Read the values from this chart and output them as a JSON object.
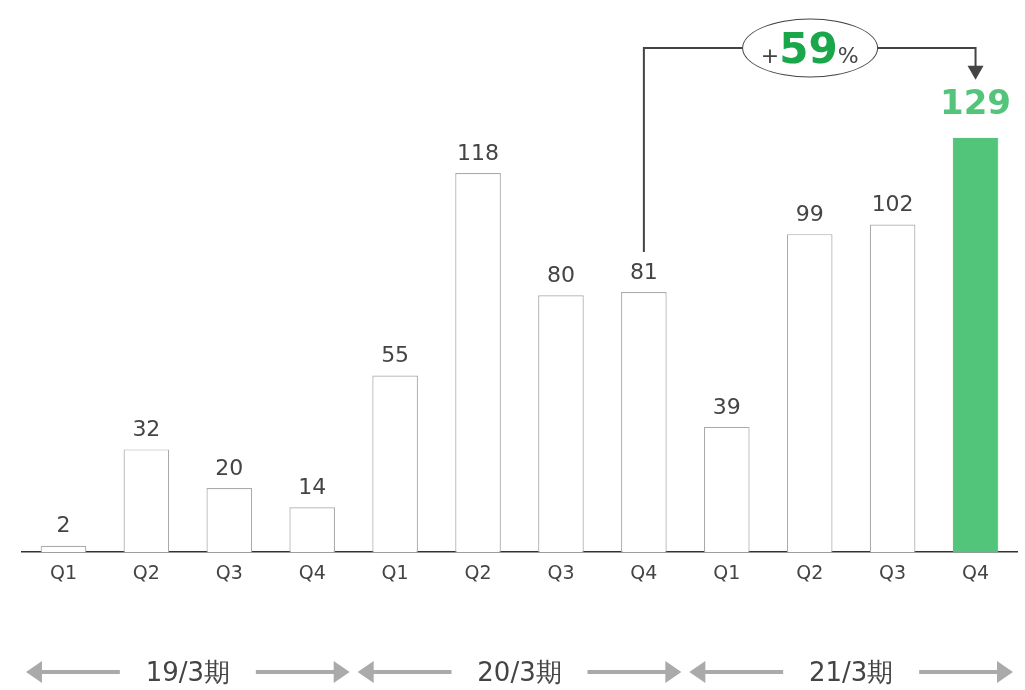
{
  "chart_data": {
    "type": "bar",
    "categories": [
      "Q1",
      "Q2",
      "Q3",
      "Q4",
      "Q1",
      "Q2",
      "Q3",
      "Q4",
      "Q1",
      "Q2",
      "Q3",
      "Q4"
    ],
    "values": [
      2,
      32,
      20,
      14,
      55,
      118,
      80,
      81,
      39,
      99,
      102,
      129
    ],
    "colors": [
      "#ffffff",
      "#ffffff",
      "#ffffff",
      "#ffffff",
      "#ffffff",
      "#ffffff",
      "#ffffff",
      "#ffffff",
      "#ffffff",
      "#ffffff",
      "#ffffff",
      "#52c57a"
    ],
    "data_labels": true,
    "grid": false,
    "legend": false,
    "annotations": [
      "+59%",
      "19/3期",
      "20/3期",
      "21/3期"
    ]
  }
}
